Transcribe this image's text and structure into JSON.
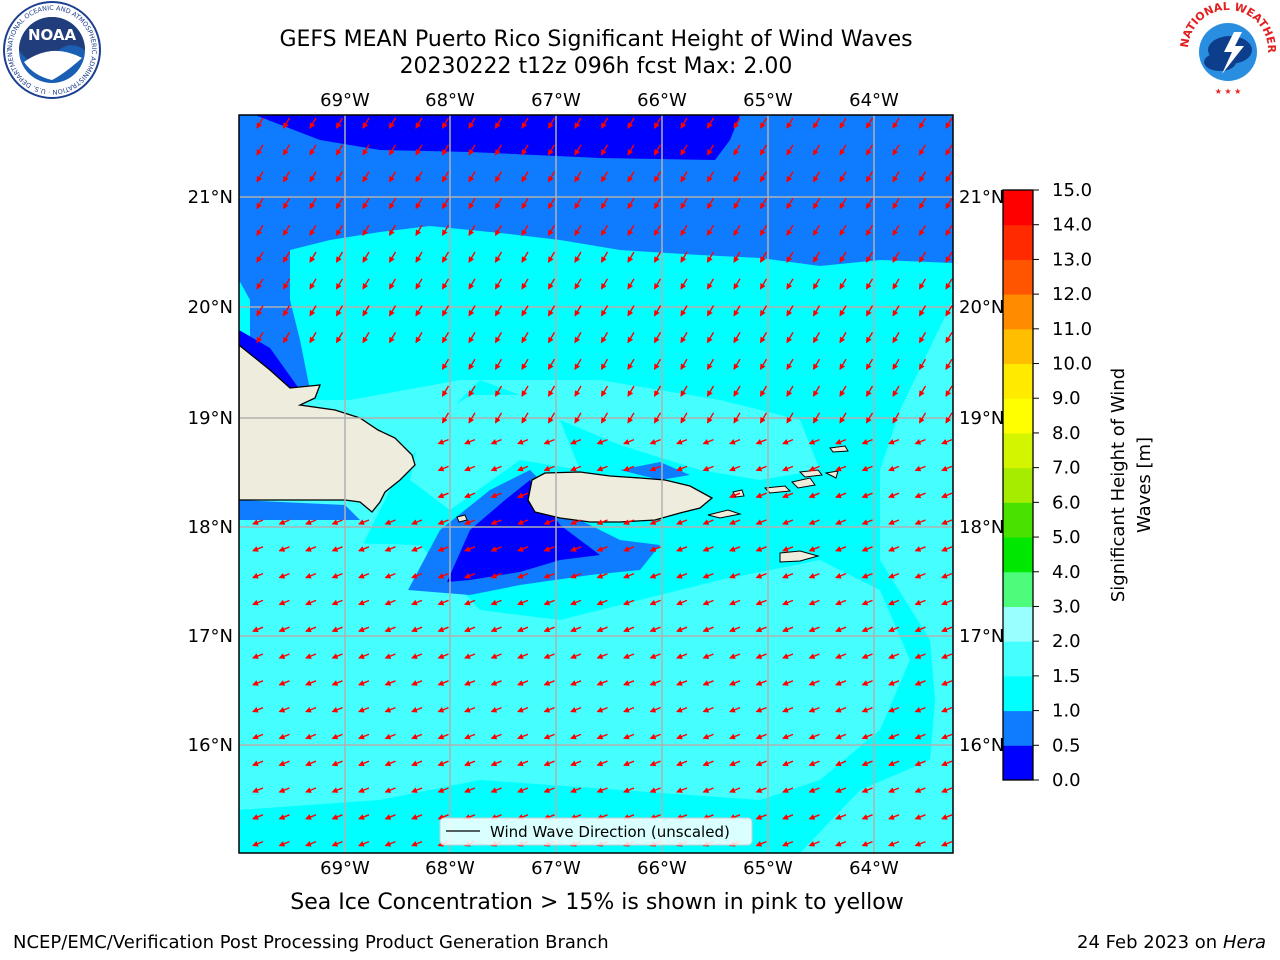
{
  "header": {
    "title_line1": "GEFS MEAN Puerto Rico Significant Height of Wind Waves",
    "title_line2": "20230222 t12z 096h fcst   Max: 2.00"
  },
  "logos": {
    "left": {
      "name": "noaa-logo",
      "text": "NOAA",
      "ring_text": "NATIONAL OCEANIC AND ATMOSPHERIC ADMINISTRATION · U.S. DEPARTMENT OF COMMERCE"
    },
    "right": {
      "name": "nws-logo",
      "ring_text": "NATIONAL WEATHER SERVICE"
    }
  },
  "map": {
    "lon_ticks": [
      "69°W",
      "68°W",
      "67°W",
      "66°W",
      "65°W",
      "64°W"
    ],
    "lat_ticks": [
      "21°N",
      "20°N",
      "19°N",
      "18°N",
      "17°N",
      "16°N"
    ],
    "legend_label": "Wind Wave Direction (unscaled)",
    "arrow_color": "#ff0000",
    "land_color": "#eeecdc"
  },
  "colorbar": {
    "label_line1": "Significant Height of Wind",
    "label_line2": "Waves [m]",
    "levels": [
      "0.0",
      "0.5",
      "1.0",
      "1.5",
      "2.0",
      "3.0",
      "4.0",
      "5.0",
      "6.0",
      "7.0",
      "8.0",
      "9.0",
      "10.0",
      "11.0",
      "12.0",
      "13.0",
      "14.0",
      "15.0"
    ],
    "colors": [
      "#0000ff",
      "#0f7cff",
      "#00ffff",
      "#45ffff",
      "#99ffff",
      "#4efc7c",
      "#00e800",
      "#48e100",
      "#a6ec00",
      "#d4f500",
      "#ffff00",
      "#ffea00",
      "#ffbf00",
      "#ff8c00",
      "#ff5500",
      "#ff2a00",
      "#ff0000"
    ]
  },
  "footer": {
    "note": "Sea Ice Concentration > 15% is shown in pink to yellow",
    "credit_left": "NCEP/EMC/Verification Post Processing Product Generation Branch",
    "credit_right_date": "24 Feb 2023 on",
    "credit_right_host": "Hera"
  }
}
